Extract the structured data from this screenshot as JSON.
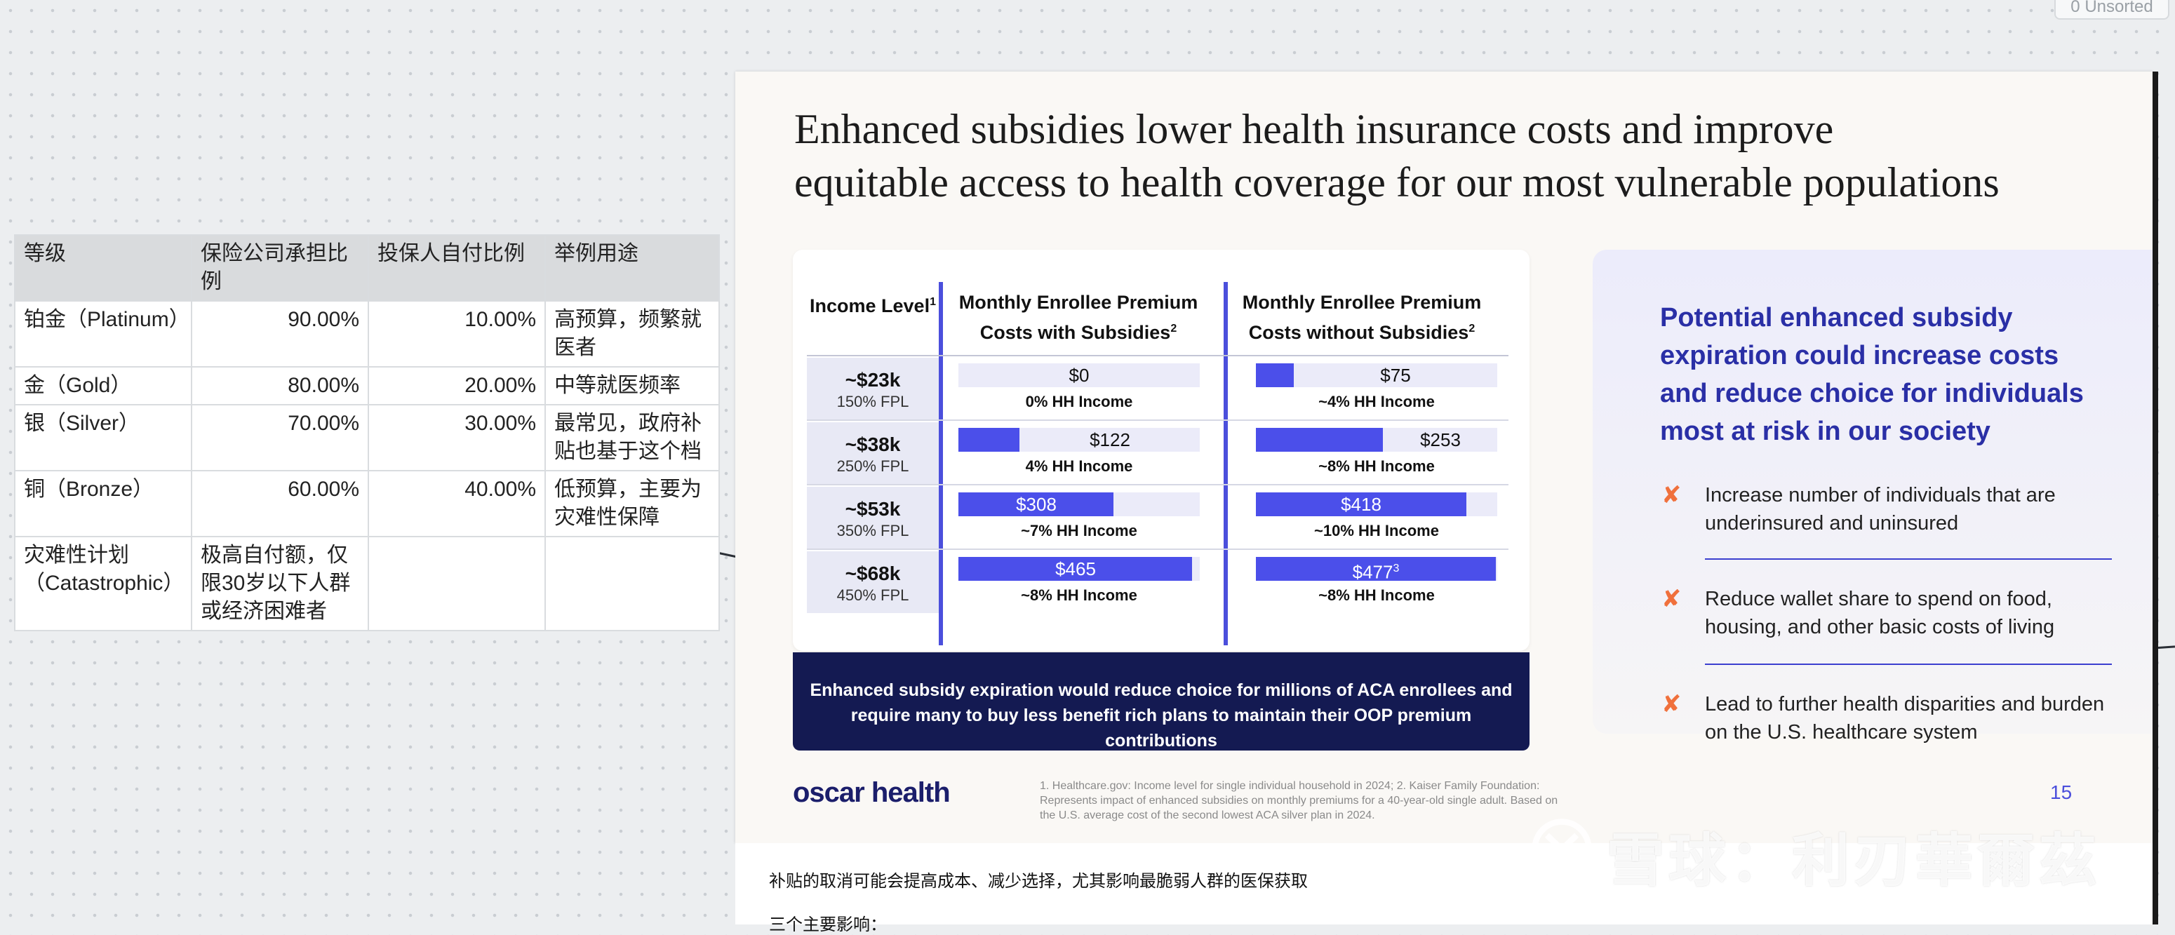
{
  "board": {
    "unsorted_label": "0 Unsorted"
  },
  "tier_table": {
    "headers": [
      "等级",
      "保险公司承担比例",
      "投保人自付比例",
      "举例用途"
    ],
    "rows": [
      [
        "铂金（Platinum）",
        "90.00%",
        "10.00%",
        "高预算，频繁就医者"
      ],
      [
        "金（Gold）",
        "80.00%",
        "20.00%",
        "中等就医频率"
      ],
      [
        "银（Silver）",
        "70.00%",
        "30.00%",
        "最常见，政府补贴也基于这个档"
      ],
      [
        "铜（Bronze）",
        "60.00%",
        "40.00%",
        "低预算，主要为灾难性保障"
      ],
      [
        "灾难性计划（Catastrophic）",
        "极高自付额，仅限30岁以下人群或经济困难者",
        "",
        ""
      ]
    ]
  },
  "slide": {
    "title_line1": "Enhanced subsidies lower health insurance costs and improve",
    "title_line2": "equitable access to health coverage for our most vulnerable populations",
    "col_income": "Income Level",
    "col_income_sup": "1",
    "col_with": "Monthly Enrollee Premium Costs with Subsidies",
    "col_with_sup": "2",
    "col_without": "Monthly Enrollee Premium Costs without Subsidies",
    "col_without_sup": "2",
    "rows": [
      {
        "income": "~$23k",
        "fpl": "150% FPL",
        "with_label": "$0",
        "with_value": 0,
        "with_hh": "0% HH Income",
        "without_label": "$75",
        "without_value": 75,
        "without_hh": "~4% HH Income",
        "without_sup": ""
      },
      {
        "income": "~$38k",
        "fpl": "250% FPL",
        "with_label": "$122",
        "with_value": 122,
        "with_hh": "4% HH Income",
        "without_label": "$253",
        "without_value": 253,
        "without_hh": "~8% HH Income",
        "without_sup": ""
      },
      {
        "income": "~$53k",
        "fpl": "350% FPL",
        "with_label": "$308",
        "with_value": 308,
        "with_hh": "~7% HH Income",
        "without_label": "$418",
        "without_value": 418,
        "without_hh": "~10% HH Income",
        "without_sup": ""
      },
      {
        "income": "~$68k",
        "fpl": "450% FPL",
        "with_label": "$465",
        "with_value": 465,
        "with_hh": "~8% HH Income",
        "without_label": "$477",
        "without_value": 477,
        "without_hh": "~8% HH Income",
        "without_sup": "3"
      }
    ],
    "bar_max": 480,
    "banner_line1": "Enhanced subsidy expiration would reduce choice for millions of ACA enrollees and",
    "banner_line2": "require many to buy less benefit rich plans to maintain their OOP premium contributions",
    "logo": "oscar health",
    "footnote": "1. Healthcare.gov: Income level for single individual household in 2024; 2. Kaiser Family Foundation: Represents impact of enhanced subsidies on monthly premiums for a 40-year-old single adult. Based on the U.S. average cost of the second lowest ACA silver plan in 2024.",
    "page_number": "15",
    "right_heading": "Potential enhanced subsidy expiration could increase costs and reduce choice for individuals most at risk in our society",
    "bullets": [
      "Increase number of individuals that are underinsured and uninsured",
      "Reduce wallet share to spend on food, housing, and other basic costs of living",
      "Lead to further health disparities and burden on the U.S. healthcare system"
    ],
    "bullet_mark": "✘",
    "colors": {
      "bar": "#4b4fea",
      "banner": "#141a52",
      "accent": "#2a2fa6",
      "x_mark": "#f0703c"
    }
  },
  "note": {
    "line1": "补贴的取消可能会提高成本、减少选择，尤其影响最脆弱人群的医保获取",
    "line2": "三个主要影响："
  },
  "watermark": "雪球：利刃華爾茲"
}
